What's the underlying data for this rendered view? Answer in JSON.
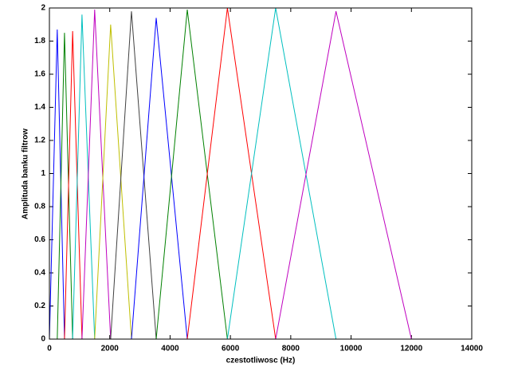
{
  "chart_data": {
    "type": "line",
    "xlabel": "czestotliwosc (Hz)",
    "ylabel": "Amplituda banku filtrow",
    "xlim": [
      0,
      14000
    ],
    "xticks": [
      0,
      2000,
      4000,
      6000,
      8000,
      10000,
      12000,
      14000
    ],
    "ylim": [
      0,
      2
    ],
    "yticks": [
      0,
      0.2,
      0.4,
      0.6,
      0.8,
      1,
      1.2,
      1.4,
      1.6,
      1.8,
      2
    ],
    "series": [
      {
        "color": "#0000ff",
        "x": [
          0,
          260,
          500
        ],
        "values": [
          0,
          1.87,
          0
        ]
      },
      {
        "color": "#008000",
        "x": [
          260,
          500,
          770
        ],
        "values": [
          0,
          1.85,
          0
        ]
      },
      {
        "color": "#ff0000",
        "x": [
          500,
          770,
          1080
        ],
        "values": [
          0,
          1.86,
          0
        ]
      },
      {
        "color": "#00bfbf",
        "x": [
          770,
          1080,
          1500
        ],
        "values": [
          0,
          1.96,
          0
        ]
      },
      {
        "color": "#bf00bf",
        "x": [
          1080,
          1500,
          2030
        ],
        "values": [
          0,
          1.99,
          0
        ]
      },
      {
        "color": "#bfbf00",
        "x": [
          1500,
          2030,
          2720
        ],
        "values": [
          0,
          1.9,
          0
        ]
      },
      {
        "color": "#404040",
        "x": [
          2030,
          2720,
          3540
        ],
        "values": [
          0,
          1.98,
          0
        ]
      },
      {
        "color": "#0000ff",
        "x": [
          2720,
          3540,
          4570
        ],
        "values": [
          0,
          1.94,
          0
        ]
      },
      {
        "color": "#008000",
        "x": [
          3540,
          4570,
          5900
        ],
        "values": [
          0,
          1.99,
          0
        ]
      },
      {
        "color": "#ff0000",
        "x": [
          4570,
          5900,
          7500
        ],
        "values": [
          0,
          2,
          0
        ]
      },
      {
        "color": "#00bfbf",
        "x": [
          5900,
          7500,
          9500
        ],
        "values": [
          0,
          2,
          0
        ]
      },
      {
        "color": "#bf00bf",
        "x": [
          7500,
          9500,
          12000
        ],
        "values": [
          0,
          1.98,
          0
        ]
      }
    ]
  }
}
